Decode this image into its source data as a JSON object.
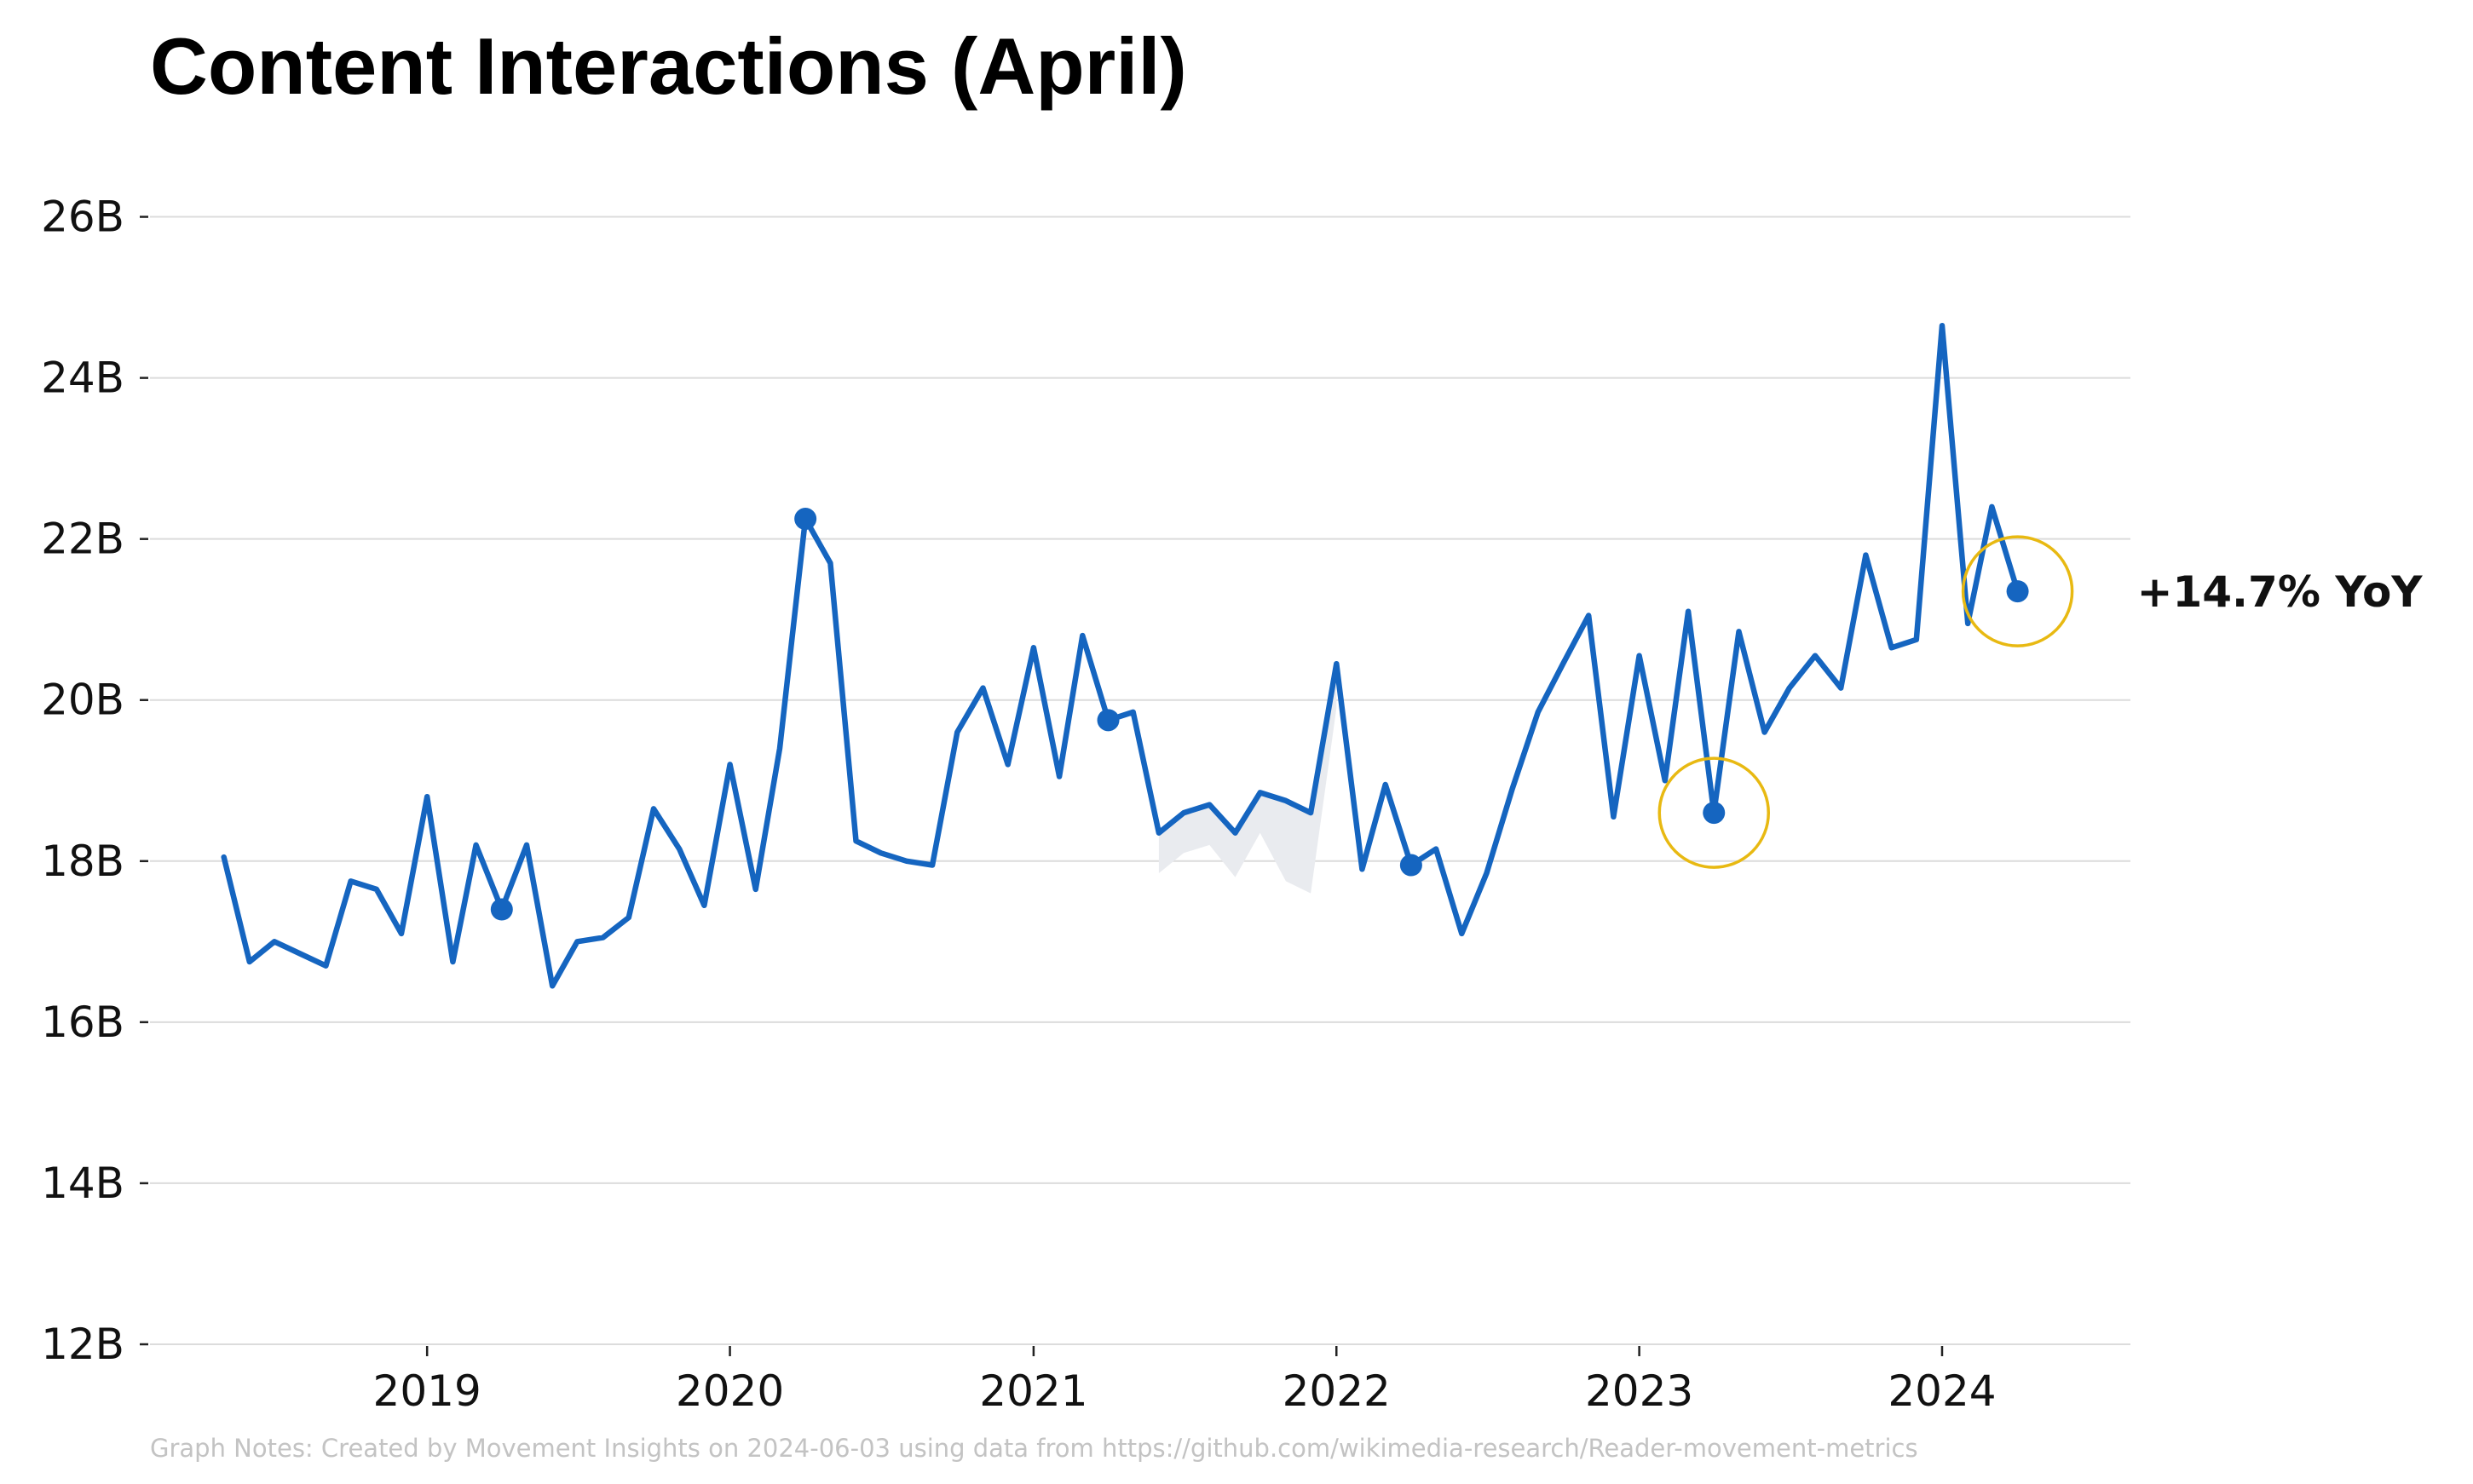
{
  "chart_data": {
    "type": "line",
    "title": "Content Interactions (April)",
    "xlabel": "",
    "ylabel": "",
    "ylim": [
      12,
      27
    ],
    "y_unit": "B",
    "y_ticks": [
      {
        "value": 12,
        "label": "12B"
      },
      {
        "value": 14,
        "label": "14B"
      },
      {
        "value": 16,
        "label": "16B"
      },
      {
        "value": 18,
        "label": "18B"
      },
      {
        "value": 20,
        "label": "20B"
      },
      {
        "value": 22,
        "label": "22B"
      },
      {
        "value": 24,
        "label": "24B"
      },
      {
        "value": 26,
        "label": "26B"
      }
    ],
    "x_range": [
      "2018-02-01",
      "2024-08-15"
    ],
    "x_ticks": [
      {
        "value": "2019-01-01",
        "label": "2019"
      },
      {
        "value": "2020-01-01",
        "label": "2020"
      },
      {
        "value": "2021-01-01",
        "label": "2021"
      },
      {
        "value": "2022-01-01",
        "label": "2022"
      },
      {
        "value": "2023-01-01",
        "label": "2023"
      },
      {
        "value": "2024-01-01",
        "label": "2024"
      }
    ],
    "grid": "horizontal",
    "line_color": "#1565c0",
    "band_color": "#e9ebef",
    "highlight_color": "#e8b912",
    "series": [
      {
        "points": [
          {
            "x": "2018-05-01",
            "y": 18.05
          },
          {
            "x": "2018-06-01",
            "y": 16.75
          },
          {
            "x": "2018-07-01",
            "y": 17.0
          },
          {
            "x": "2018-08-01",
            "y": 16.85
          },
          {
            "x": "2018-09-01",
            "y": 16.7
          },
          {
            "x": "2018-10-01",
            "y": 17.75
          },
          {
            "x": "2018-11-01",
            "y": 17.65
          },
          {
            "x": "2018-12-01",
            "y": 17.1
          },
          {
            "x": "2019-01-01",
            "y": 18.8
          },
          {
            "x": "2019-02-01",
            "y": 16.75
          },
          {
            "x": "2019-03-01",
            "y": 18.2
          },
          {
            "x": "2019-04-01",
            "y": 17.4
          },
          {
            "x": "2019-05-01",
            "y": 18.2
          },
          {
            "x": "2019-06-01",
            "y": 16.45
          },
          {
            "x": "2019-07-01",
            "y": 17.0
          },
          {
            "x": "2019-08-01",
            "y": 17.05
          },
          {
            "x": "2019-09-01",
            "y": 17.3
          },
          {
            "x": "2019-10-01",
            "y": 18.65
          },
          {
            "x": "2019-11-01",
            "y": 18.15
          },
          {
            "x": "2019-12-01",
            "y": 17.45
          },
          {
            "x": "2020-01-01",
            "y": 19.2
          },
          {
            "x": "2020-02-01",
            "y": 17.65
          },
          {
            "x": "2020-03-01",
            "y": 19.4
          },
          {
            "x": "2020-04-01",
            "y": 22.25
          },
          {
            "x": "2020-05-01",
            "y": 21.7
          },
          {
            "x": "2020-06-01",
            "y": 18.25
          },
          {
            "x": "2020-07-01",
            "y": 18.1
          },
          {
            "x": "2020-08-01",
            "y": 18.0
          },
          {
            "x": "2020-09-01",
            "y": 17.95
          },
          {
            "x": "2020-10-01",
            "y": 19.6
          },
          {
            "x": "2020-11-01",
            "y": 20.15
          },
          {
            "x": "2020-12-01",
            "y": 19.2
          },
          {
            "x": "2021-01-01",
            "y": 20.65
          },
          {
            "x": "2021-02-01",
            "y": 19.05
          },
          {
            "x": "2021-03-01",
            "y": 20.8
          },
          {
            "x": "2021-04-01",
            "y": 19.75
          },
          {
            "x": "2021-05-01",
            "y": 19.85
          },
          {
            "x": "2021-06-01",
            "y": 18.35
          },
          {
            "x": "2021-07-01",
            "y": 18.6
          },
          {
            "x": "2021-08-01",
            "y": 18.7
          },
          {
            "x": "2021-09-01",
            "y": 18.35
          },
          {
            "x": "2021-10-01",
            "y": 18.85
          },
          {
            "x": "2021-11-01",
            "y": 18.75
          },
          {
            "x": "2021-12-01",
            "y": 18.6
          },
          {
            "x": "2022-01-01",
            "y": 20.45
          },
          {
            "x": "2022-02-01",
            "y": 17.9
          },
          {
            "x": "2022-03-01",
            "y": 18.95
          },
          {
            "x": "2022-04-01",
            "y": 17.95
          },
          {
            "x": "2022-05-01",
            "y": 18.15
          },
          {
            "x": "2022-06-01",
            "y": 17.1
          },
          {
            "x": "2022-07-01",
            "y": 17.85
          },
          {
            "x": "2022-08-01",
            "y": 18.9
          },
          {
            "x": "2022-09-01",
            "y": 19.85
          },
          {
            "x": "2022-10-01",
            "y": 20.45
          },
          {
            "x": "2022-11-01",
            "y": 21.05
          },
          {
            "x": "2022-12-01",
            "y": 18.55
          },
          {
            "x": "2023-01-01",
            "y": 20.55
          },
          {
            "x": "2023-02-01",
            "y": 19.0
          },
          {
            "x": "2023-03-01",
            "y": 21.1
          },
          {
            "x": "2023-04-01",
            "y": 18.6
          },
          {
            "x": "2023-05-01",
            "y": 20.85
          },
          {
            "x": "2023-06-01",
            "y": 19.6
          },
          {
            "x": "2023-07-01",
            "y": 20.15
          },
          {
            "x": "2023-08-01",
            "y": 20.55
          },
          {
            "x": "2023-09-01",
            "y": 20.15
          },
          {
            "x": "2023-10-01",
            "y": 21.8
          },
          {
            "x": "2023-11-01",
            "y": 20.65
          },
          {
            "x": "2023-12-01",
            "y": 20.75
          },
          {
            "x": "2024-01-01",
            "y": 24.65
          },
          {
            "x": "2024-02-01",
            "y": 20.95
          },
          {
            "x": "2024-03-01",
            "y": 22.4
          },
          {
            "x": "2024-04-01",
            "y": 21.35
          }
        ]
      }
    ],
    "april_markers": [
      {
        "x": "2019-04-01",
        "y": 17.4
      },
      {
        "x": "2020-04-01",
        "y": 22.25
      },
      {
        "x": "2021-04-01",
        "y": 19.75
      },
      {
        "x": "2022-04-01",
        "y": 17.95
      },
      {
        "x": "2023-04-01",
        "y": 18.6
      },
      {
        "x": "2024-04-01",
        "y": 21.35
      }
    ],
    "band": [
      {
        "x": "2021-06-01",
        "low": 17.85,
        "high": 18.35
      },
      {
        "x": "2021-07-01",
        "low": 18.1,
        "high": 18.6
      },
      {
        "x": "2021-08-01",
        "low": 18.2,
        "high": 18.7
      },
      {
        "x": "2021-09-01",
        "low": 17.8,
        "high": 18.35
      },
      {
        "x": "2021-10-01",
        "low": 18.35,
        "high": 18.85
      },
      {
        "x": "2021-11-01",
        "low": 17.75,
        "high": 18.75
      },
      {
        "x": "2021-12-01",
        "low": 17.6,
        "high": 18.6
      },
      {
        "x": "2022-01-01",
        "low": 19.9,
        "high": 20.45
      }
    ],
    "highlights": [
      "2023-04-01",
      "2024-04-01"
    ],
    "annotation": {
      "text": "+14.7% YoY",
      "x": "2024-04-01",
      "y": 21.35
    },
    "note": "Graph Notes: Created by Movement Insights on 2024-06-03 using data from https://github.com/wikimedia-research/Reader-movement-metrics"
  }
}
